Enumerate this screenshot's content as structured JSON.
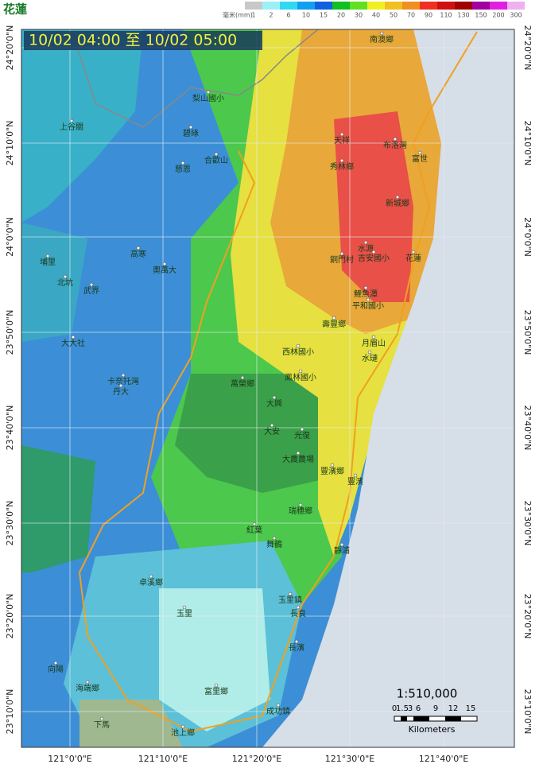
{
  "header": {
    "title": "花蓮",
    "time_range": "10/02 04:00 至 10/02 05:00"
  },
  "legend": {
    "unit": "毫米(mm)",
    "items": [
      {
        "label": "1",
        "color": "#c8c8c8"
      },
      {
        "label": "2",
        "color": "#9cf0f8"
      },
      {
        "label": "6",
        "color": "#30d8f0"
      },
      {
        "label": "10",
        "color": "#10a0f0"
      },
      {
        "label": "15",
        "color": "#1060e0"
      },
      {
        "label": "20",
        "color": "#10c020"
      },
      {
        "label": "30",
        "color": "#60e020"
      },
      {
        "label": "40",
        "color": "#f0f020"
      },
      {
        "label": "50",
        "color": "#f0c020"
      },
      {
        "label": "70",
        "color": "#f09020"
      },
      {
        "label": "90",
        "color": "#f03020"
      },
      {
        "label": "110",
        "color": "#d01010"
      },
      {
        "label": "130",
        "color": "#a00000"
      },
      {
        "label": "150",
        "color": "#a000a0"
      },
      {
        "label": "200",
        "color": "#e020e0"
      },
      {
        "label": "300",
        "color": "#f0b0f0"
      }
    ]
  },
  "latitude_labels": [
    "24°20'0\"N",
    "24°10'0\"N",
    "24°0'0\"N",
    "23°50'0\"N",
    "23°40'0\"N",
    "23°30'0\"N",
    "23°20'0\"N",
    "23°10'0\"N"
  ],
  "longitude_labels": [
    "121°0'0\"E",
    "121°10'0\"E",
    "121°20'0\"E",
    "121°30'0\"E",
    "121°40'0\"E"
  ],
  "scale": {
    "ratio": "1:510,000",
    "ticks": [
      "0",
      "1.5",
      "3",
      "6",
      "9",
      "12",
      "15"
    ],
    "unit": "Kilometers"
  },
  "places": [
    "南澳鄉",
    "天祥",
    "布洛灣",
    "富世",
    "秀林鄉",
    "新城鄉",
    "銅門村",
    "水源",
    "吉安國小",
    "花蓮",
    "鯉魚潭",
    "平和國小",
    "壽豐鄉",
    "西林國小",
    "月眉山",
    "水璉",
    "鳳林國小",
    "萬榮鄉",
    "大興",
    "大安",
    "光復",
    "大農農場",
    "豐濱鄉",
    "豐濱",
    "瑞穗鄉",
    "靜浦",
    "紅葉",
    "舞鶴",
    "卓溪鄉",
    "玉里鎮",
    "玉里",
    "長良",
    "長濱",
    "富里鄉",
    "成功鎮",
    "池上鄉",
    "海端鄉",
    "向陽",
    "下馬",
    "慈恩",
    "碧綠",
    "合歡山",
    "梨山國小",
    "上谷關",
    "高寒",
    "奧萬大",
    "武界",
    "卡奈托灣",
    "丹大",
    "大大社",
    "北坑",
    "埔里"
  ]
}
